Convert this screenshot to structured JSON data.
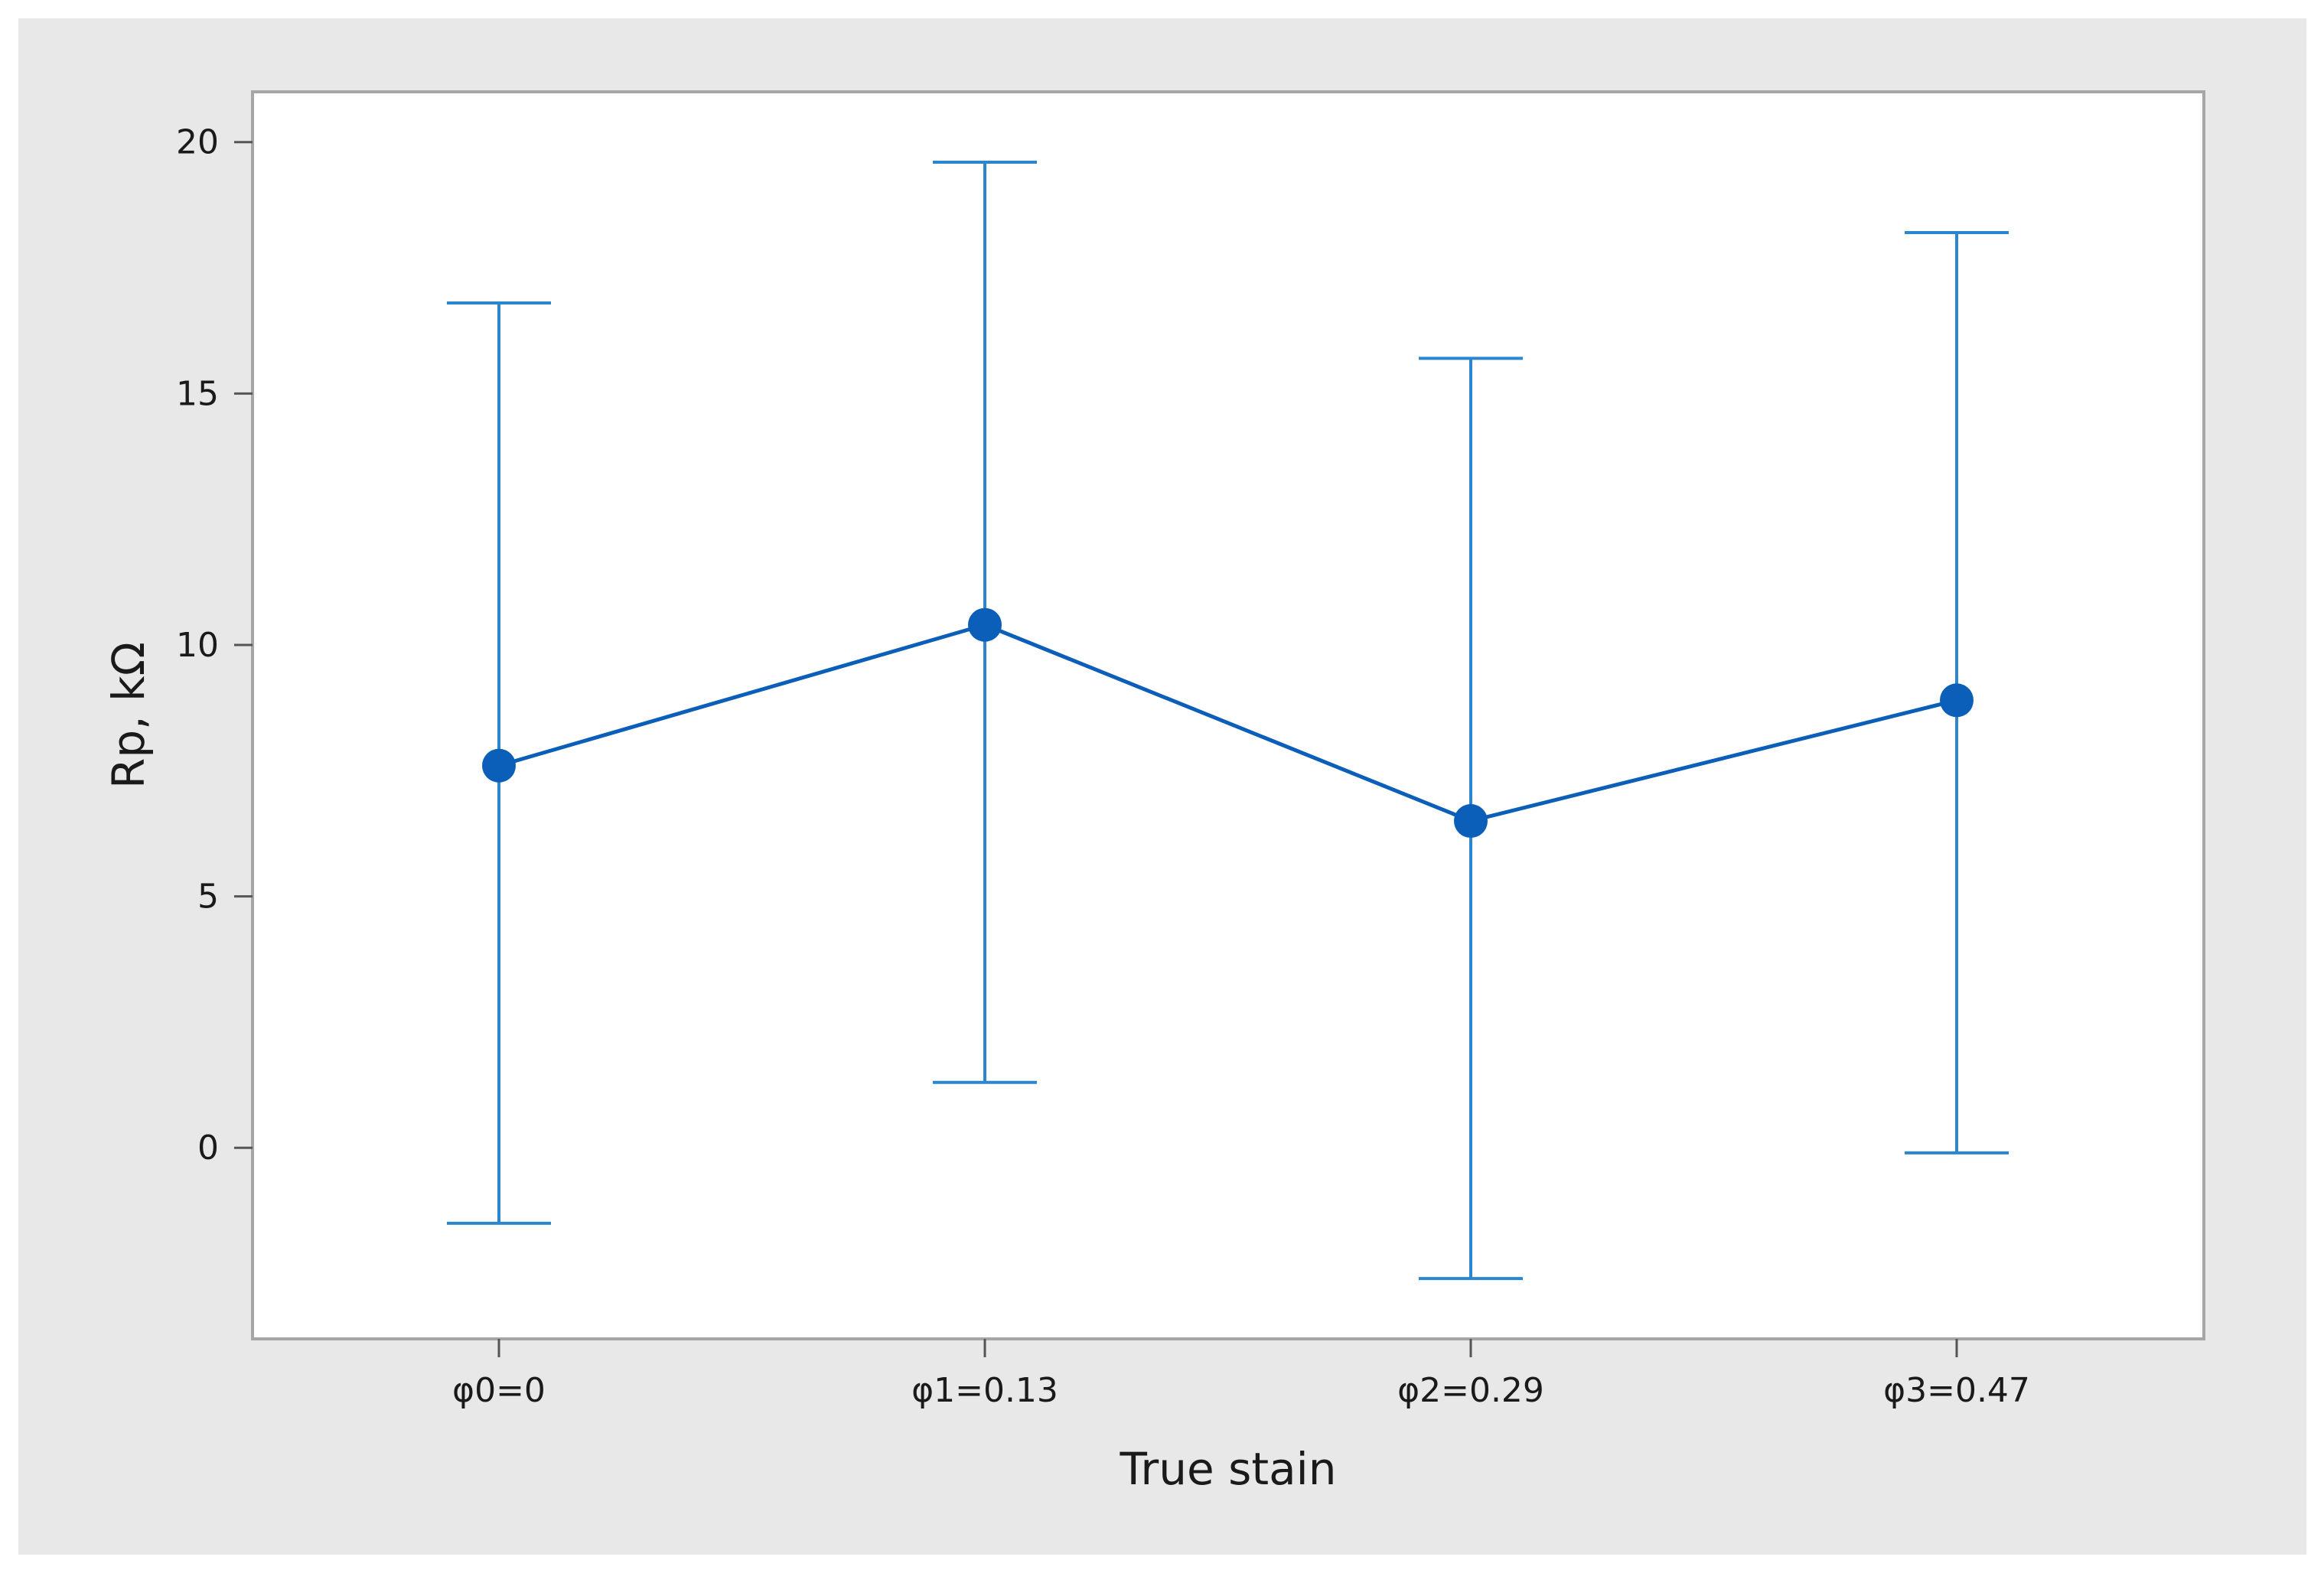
{
  "chart_data": {
    "type": "line",
    "title": "",
    "xlabel": "True stain",
    "ylabel": "Rp, kΩ",
    "categories": [
      "φ0=0",
      "φ1=0.13",
      "φ2=0.29",
      "φ3=0.47"
    ],
    "series": [
      {
        "values": [
          7.6,
          10.4,
          6.5,
          8.9
        ],
        "error_low": [
          -1.5,
          1.3,
          -2.6,
          -0.1
        ],
        "error_high": [
          16.8,
          19.6,
          15.7,
          18.2
        ]
      }
    ],
    "ylim": [
      -3.8,
      21.0
    ],
    "yticks": [
      0,
      5,
      10,
      15,
      20
    ],
    "grid": false,
    "legend": "none",
    "colors": {
      "series": "#0b5fb8",
      "error_bar": "#2b86cf",
      "outer_background": "#e8e8e8",
      "plot_background": "#ffffff",
      "plot_border": "#a6a6a6"
    }
  }
}
